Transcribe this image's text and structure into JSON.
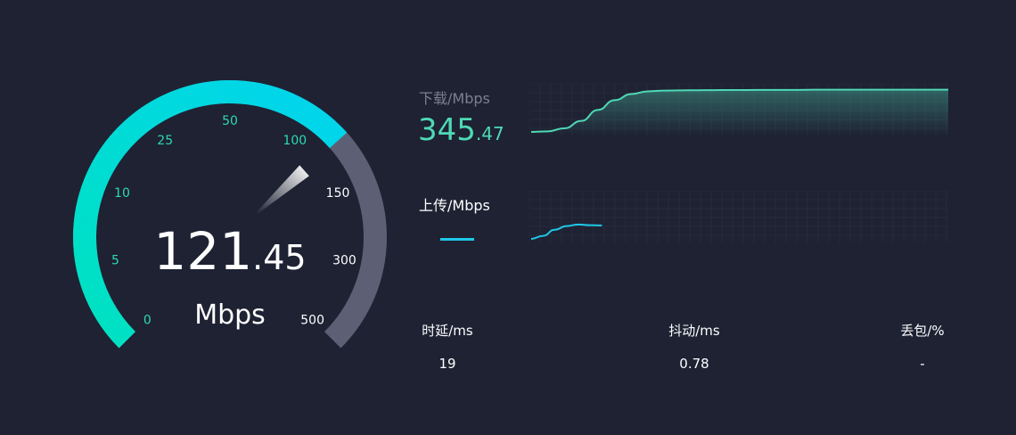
{
  "gauge": {
    "value_int": "121",
    "value_dec": ".45",
    "value": 121.45,
    "unit": "Mbps",
    "ticks": [
      "0",
      "5",
      "10",
      "25",
      "50",
      "100",
      "150",
      "300",
      "500"
    ],
    "colors": {
      "fill_start": "#00e2c0",
      "fill_end": "#00d4ee",
      "track": "#5d6074",
      "tick_active": "#2ed9b0",
      "tick_inactive": "#ffffff"
    }
  },
  "download": {
    "label": "下载/Mbps",
    "value_int": "345",
    "value_dec": ".47",
    "color": "#4fd9b5",
    "series": [
      0,
      5,
      30,
      90,
      180,
      260,
      310,
      332,
      338,
      340,
      341,
      342,
      343,
      343,
      344,
      344,
      344,
      345,
      345,
      345,
      345,
      345,
      345,
      345,
      345,
      345.47
    ]
  },
  "upload": {
    "label": "上传/Mbps",
    "value": "—",
    "color": "#1ec8e8",
    "series": [
      0,
      25,
      75,
      105,
      118,
      112,
      110
    ]
  },
  "chart_max": 350,
  "stats": [
    {
      "label": "时延/ms",
      "value": "19"
    },
    {
      "label": "抖动/ms",
      "value": "0.78"
    },
    {
      "label": "丢包/%",
      "value": "-"
    }
  ]
}
